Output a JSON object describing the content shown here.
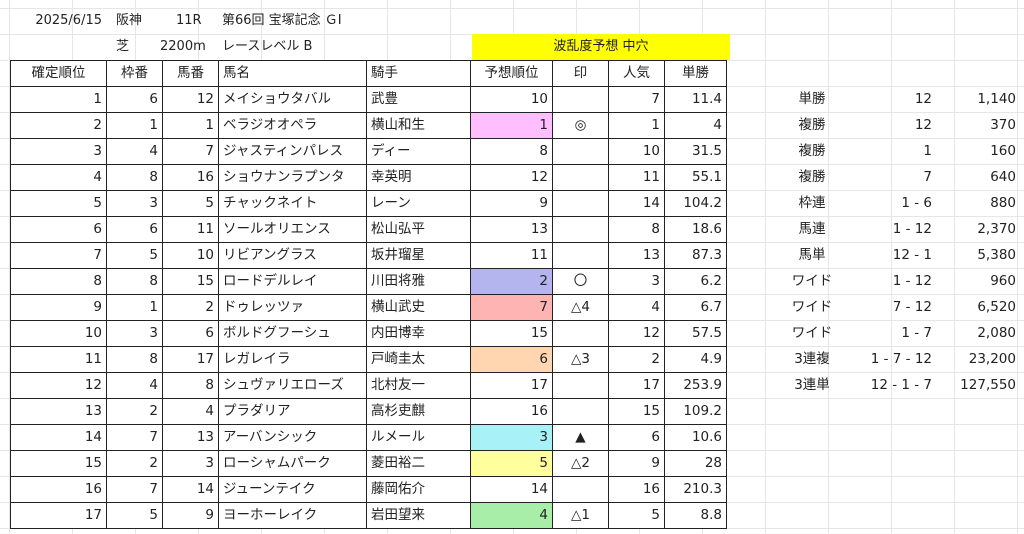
{
  "race_info": {
    "date": "2025/6/15",
    "venue": "阪神",
    "race_no": "11R",
    "race_name": "第66回 宝塚記念 ＧⅠ",
    "surface": "芝",
    "distance": "2200m",
    "race_level": "レースレベル B",
    "upset_prediction": "波乱度予想 中穴"
  },
  "colors": {
    "header_highlight": "#ffff00",
    "pink": "#ffbfff",
    "lavender": "#b4b4ee",
    "salmon": "#ffb4b4",
    "peach": "#ffd6b0",
    "cyan": "#a8f2f7",
    "pale_yellow": "#ffff9c",
    "light_green": "#a8eea8"
  },
  "columns": [
    "確定順位",
    "枠番",
    "馬番",
    "馬名",
    "騎手",
    "予想順位",
    "印",
    "人気",
    "単勝"
  ],
  "rows": [
    {
      "finish": "1",
      "gate": "6",
      "num": "12",
      "horse": "メイショウタバル",
      "jockey": "武豊",
      "pred": "10",
      "mark": "",
      "pop": "7",
      "odds": "11.4",
      "color": ""
    },
    {
      "finish": "2",
      "gate": "1",
      "num": "1",
      "horse": "ベラジオオペラ",
      "jockey": "横山和生",
      "pred": "1",
      "mark": "◎",
      "pop": "1",
      "odds": "4",
      "color": "pink"
    },
    {
      "finish": "3",
      "gate": "4",
      "num": "7",
      "horse": "ジャスティンパレス",
      "jockey": "ディー",
      "pred": "8",
      "mark": "",
      "pop": "10",
      "odds": "31.5",
      "color": ""
    },
    {
      "finish": "4",
      "gate": "8",
      "num": "16",
      "horse": "ショウナンラプンタ",
      "jockey": "幸英明",
      "pred": "12",
      "mark": "",
      "pop": "11",
      "odds": "55.1",
      "color": ""
    },
    {
      "finish": "5",
      "gate": "3",
      "num": "5",
      "horse": "チャックネイト",
      "jockey": "レーン",
      "pred": "9",
      "mark": "",
      "pop": "14",
      "odds": "104.2",
      "color": ""
    },
    {
      "finish": "6",
      "gate": "6",
      "num": "11",
      "horse": "ソールオリエンス",
      "jockey": "松山弘平",
      "pred": "13",
      "mark": "",
      "pop": "8",
      "odds": "18.6",
      "color": ""
    },
    {
      "finish": "7",
      "gate": "5",
      "num": "10",
      "horse": "リビアングラス",
      "jockey": "坂井瑠星",
      "pred": "11",
      "mark": "",
      "pop": "13",
      "odds": "87.3",
      "color": ""
    },
    {
      "finish": "8",
      "gate": "8",
      "num": "15",
      "horse": "ロードデルレイ",
      "jockey": "川田将雅",
      "pred": "2",
      "mark": "〇",
      "pop": "3",
      "odds": "6.2",
      "color": "lavender"
    },
    {
      "finish": "9",
      "gate": "1",
      "num": "2",
      "horse": "ドゥレッツァ",
      "jockey": "横山武史",
      "pred": "7",
      "mark": "△4",
      "pop": "4",
      "odds": "6.7",
      "color": "salmon"
    },
    {
      "finish": "10",
      "gate": "3",
      "num": "6",
      "horse": "ボルドグフーシュ",
      "jockey": "内田博幸",
      "pred": "15",
      "mark": "",
      "pop": "12",
      "odds": "57.5",
      "color": ""
    },
    {
      "finish": "11",
      "gate": "8",
      "num": "17",
      "horse": "レガレイラ",
      "jockey": "戸崎圭太",
      "pred": "6",
      "mark": "△3",
      "pop": "2",
      "odds": "4.9",
      "color": "peach"
    },
    {
      "finish": "12",
      "gate": "4",
      "num": "8",
      "horse": "シュヴァリエローズ",
      "jockey": "北村友一",
      "pred": "17",
      "mark": "",
      "pop": "17",
      "odds": "253.9",
      "color": ""
    },
    {
      "finish": "13",
      "gate": "2",
      "num": "4",
      "horse": "プラダリア",
      "jockey": "高杉吏麒",
      "pred": "16",
      "mark": "",
      "pop": "15",
      "odds": "109.2",
      "color": ""
    },
    {
      "finish": "14",
      "gate": "7",
      "num": "13",
      "horse": "アーバンシック",
      "jockey": "ルメール",
      "pred": "3",
      "mark": "▲",
      "pop": "6",
      "odds": "10.6",
      "color": "cyan"
    },
    {
      "finish": "15",
      "gate": "2",
      "num": "3",
      "horse": "ローシャムパーク",
      "jockey": "菱田裕二",
      "pred": "5",
      "mark": "△2",
      "pop": "9",
      "odds": "28",
      "color": "pale_yellow"
    },
    {
      "finish": "16",
      "gate": "7",
      "num": "14",
      "horse": "ジューンテイク",
      "jockey": "藤岡佑介",
      "pred": "14",
      "mark": "",
      "pop": "16",
      "odds": "210.3",
      "color": ""
    },
    {
      "finish": "17",
      "gate": "5",
      "num": "9",
      "horse": "ヨーホーレイク",
      "jockey": "岩田望来",
      "pred": "4",
      "mark": "△1",
      "pop": "5",
      "odds": "8.8",
      "color": "light_green"
    }
  ],
  "payouts": [
    {
      "type": "単勝",
      "combo": "12",
      "amount": "1,140"
    },
    {
      "type": "複勝",
      "combo": "12",
      "amount": "370"
    },
    {
      "type": "複勝",
      "combo": "1",
      "amount": "160"
    },
    {
      "type": "複勝",
      "combo": "7",
      "amount": "640"
    },
    {
      "type": "枠連",
      "combo": "1 - 6",
      "amount": "880"
    },
    {
      "type": "馬連",
      "combo": "1 - 12",
      "amount": "2,370"
    },
    {
      "type": "馬単",
      "combo": "12 - 1",
      "amount": "5,380"
    },
    {
      "type": "ワイド",
      "combo": "1 - 12",
      "amount": "960"
    },
    {
      "type": "ワイド",
      "combo": "7 - 12",
      "amount": "6,520"
    },
    {
      "type": "ワイド",
      "combo": "1 - 7",
      "amount": "2,080"
    },
    {
      "type": "3連複",
      "combo": "1 - 7 - 12",
      "amount": "23,200"
    },
    {
      "type": "3連単",
      "combo": "12 - 1 - 7",
      "amount": "127,550"
    }
  ]
}
